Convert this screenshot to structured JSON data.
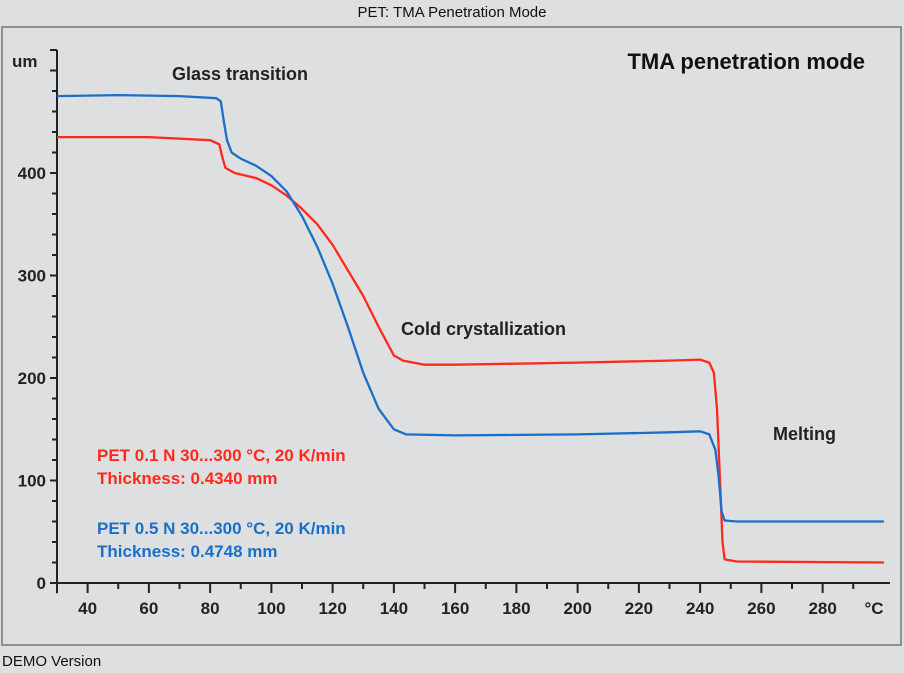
{
  "window_title": "PET: TMA Penetration Mode",
  "footer": "DEMO Version",
  "chart_data": {
    "type": "line",
    "title": "TMA penetration mode",
    "xlabel": "°C",
    "ylabel": "um",
    "xlim": [
      30,
      302
    ],
    "ylim": [
      -10,
      520
    ],
    "x_ticks": [
      40,
      60,
      80,
      100,
      120,
      140,
      160,
      180,
      200,
      220,
      240,
      260,
      280
    ],
    "y_ticks": [
      0,
      100,
      200,
      300,
      400
    ],
    "grid": false,
    "annotations": [
      "Glass transition",
      "Cold crystallization",
      "Melting"
    ],
    "series": [
      {
        "name": "PET 0.1 N 30...300 °C, 20 K/min",
        "subtitle": "Thickness: 0.4340 mm",
        "color": "#ff2a1a",
        "points": [
          [
            30,
            435
          ],
          [
            60,
            435
          ],
          [
            80,
            432
          ],
          [
            83,
            428
          ],
          [
            84,
            415
          ],
          [
            85,
            405
          ],
          [
            88,
            400
          ],
          [
            95,
            395
          ],
          [
            100,
            388
          ],
          [
            105,
            378
          ],
          [
            110,
            365
          ],
          [
            115,
            350
          ],
          [
            120,
            330
          ],
          [
            125,
            305
          ],
          [
            130,
            280
          ],
          [
            135,
            250
          ],
          [
            140,
            222
          ],
          [
            143,
            217
          ],
          [
            150,
            213
          ],
          [
            160,
            213
          ],
          [
            200,
            215
          ],
          [
            230,
            217
          ],
          [
            240,
            218
          ],
          [
            243,
            215
          ],
          [
            244.5,
            205
          ],
          [
            245.5,
            170
          ],
          [
            246.5,
            100
          ],
          [
            247.3,
            40
          ],
          [
            248,
            23
          ],
          [
            252,
            21
          ],
          [
            300,
            20
          ]
        ]
      },
      {
        "name": "PET 0.5 N 30...300 °C, 20 K/min",
        "subtitle": "Thickness: 0.4748 mm",
        "color": "#1a6fc8",
        "points": [
          [
            30,
            475
          ],
          [
            50,
            476
          ],
          [
            70,
            475
          ],
          [
            82,
            473
          ],
          [
            83.5,
            470
          ],
          [
            84.5,
            450
          ],
          [
            85.5,
            432
          ],
          [
            87,
            420
          ],
          [
            90,
            414
          ],
          [
            95,
            407
          ],
          [
            100,
            397
          ],
          [
            105,
            382
          ],
          [
            110,
            358
          ],
          [
            115,
            328
          ],
          [
            120,
            292
          ],
          [
            125,
            250
          ],
          [
            130,
            205
          ],
          [
            135,
            170
          ],
          [
            140,
            150
          ],
          [
            144,
            145
          ],
          [
            160,
            144
          ],
          [
            200,
            145
          ],
          [
            230,
            147
          ],
          [
            240,
            148
          ],
          [
            243,
            145
          ],
          [
            245,
            130
          ],
          [
            246,
            105
          ],
          [
            247,
            70
          ],
          [
            248,
            61
          ],
          [
            252,
            60
          ],
          [
            300,
            60
          ]
        ]
      }
    ]
  }
}
